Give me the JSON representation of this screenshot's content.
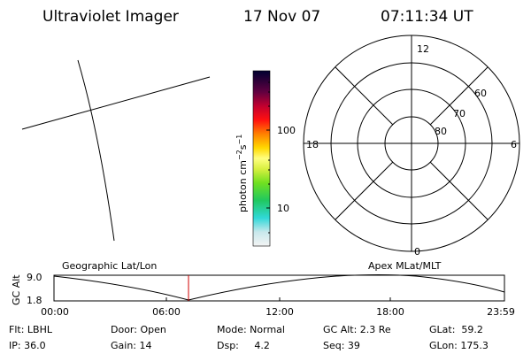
{
  "header": {
    "instrument": "Ultraviolet Imager",
    "date": "17 Nov 07",
    "time": "07:11:34 UT"
  },
  "colorbar": {
    "unit": "photon cm",
    "exp1": "−2",
    "unit2": "s",
    "exp2": "−1",
    "ticks": [
      "100",
      "10"
    ]
  },
  "polar": {
    "mlt": [
      "12",
      "18",
      "6",
      "0"
    ],
    "mlat": [
      "60",
      "70",
      "80"
    ]
  },
  "timeline": {
    "left_title": "Geographic Lat/Lon",
    "right_title": "Apex MLat/MLT",
    "y_label": "GC Alt",
    "y_ticks": [
      "9.0",
      "1.8"
    ],
    "x_ticks": [
      "00:00",
      "06:00",
      "12:00",
      "18:00",
      "23:59"
    ]
  },
  "footer": {
    "rows": [
      [
        "Flt: LBHL",
        "Door: Open",
        "Mode: Normal",
        "GC Alt: 2.3 Re",
        "GLat:  59.2"
      ],
      [
        "IP: 36.0",
        "Gain: 14",
        "Dsp:     4.2",
        "Seq: 39",
        "GLon: 175.3"
      ]
    ]
  }
}
